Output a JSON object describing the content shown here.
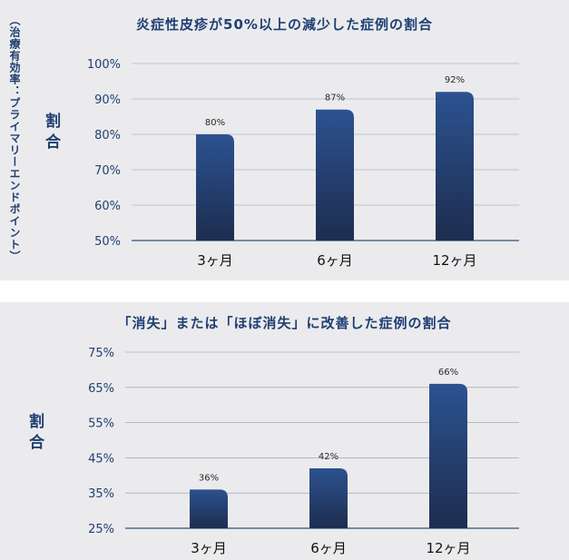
{
  "charts": [
    {
      "title": "炎症性皮疹が50%以上の減少した症例の割合",
      "ylabel": "割合",
      "ylabel_sub": "（治療有効率：プライマリーエンドポイント）"
    },
    {
      "title": "「消失」または「ほぼ消失」に改善した症例の割合",
      "ylabel": "割合"
    }
  ],
  "colors": {
    "bar_top": "#2c5290",
    "bar_bottom": "#1d2d4f",
    "text": "#1f3f73",
    "grid": "#1f3f73",
    "panel": "#ebebed"
  },
  "chart_data": [
    {
      "type": "bar",
      "title": "炎症性皮疹が50%以上の減少した症例の割合",
      "ylabel": "割合",
      "categories": [
        "3ヶ月",
        "6ヶ月",
        "12ヶ月"
      ],
      "values": [
        80,
        87,
        92
      ],
      "data_labels": [
        "80%",
        "87%",
        "92%"
      ],
      "ylim": [
        50,
        100
      ],
      "yticks": [
        "50%",
        "60%",
        "70%",
        "80%",
        "90%",
        "100%"
      ],
      "ytick_values": [
        50,
        60,
        70,
        80,
        90,
        100
      ],
      "grid": true
    },
    {
      "type": "bar",
      "title": "「消失」または「ほぼ消失」に改善した症例の割合",
      "ylabel": "割合",
      "categories": [
        "3ヶ月",
        "6ヶ月",
        "12ヶ月"
      ],
      "values": [
        36,
        42,
        66
      ],
      "data_labels": [
        "36%",
        "42%",
        "66%"
      ],
      "ylim": [
        25,
        75
      ],
      "yticks": [
        "25%",
        "35%",
        "45%",
        "55%",
        "65%",
        "75%"
      ],
      "ytick_values": [
        25,
        35,
        45,
        55,
        65,
        75
      ],
      "grid": true
    }
  ]
}
